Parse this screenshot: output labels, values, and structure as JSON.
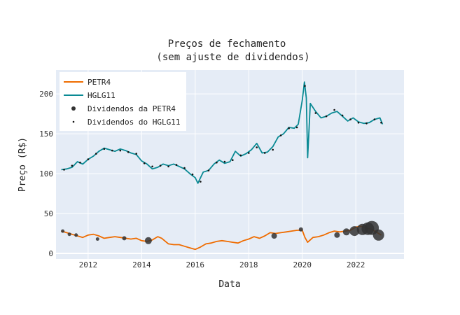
{
  "chart_data": {
    "type": "line",
    "title": [
      "Preços de fechamento",
      "(sem ajuste de dividendos)"
    ],
    "xlabel": "Data",
    "ylabel": "Preço (R$)",
    "xlim": [
      2010.8,
      2023.8
    ],
    "ylim": [
      -7,
      230
    ],
    "x_ticks": [
      2012,
      2014,
      2016,
      2018,
      2020,
      2022
    ],
    "y_ticks": [
      0,
      50,
      100,
      150,
      200
    ],
    "grid": true,
    "legend_position": "top-left",
    "series": [
      {
        "name": "PETR4",
        "color": "#ef6c00",
        "x": [
          2011.0,
          2011.2,
          2011.4,
          2011.6,
          2011.8,
          2012.0,
          2012.2,
          2012.4,
          2012.6,
          2012.8,
          2013.0,
          2013.2,
          2013.4,
          2013.6,
          2013.8,
          2014.0,
          2014.2,
          2014.4,
          2014.6,
          2014.75,
          2015.0,
          2015.2,
          2015.4,
          2015.6,
          2015.8,
          2016.0,
          2016.2,
          2016.4,
          2016.6,
          2016.8,
          2017.0,
          2017.2,
          2017.4,
          2017.6,
          2017.8,
          2018.0,
          2018.2,
          2018.4,
          2018.6,
          2018.8,
          2019.0,
          2019.2,
          2019.4,
          2019.6,
          2019.8,
          2020.0,
          2020.1,
          2020.2,
          2020.4,
          2020.6,
          2020.8,
          2021.0,
          2021.2,
          2021.4,
          2021.6,
          2021.8,
          2022.0,
          2022.2,
          2022.4,
          2022.6,
          2022.8,
          2022.95
        ],
        "y": [
          28,
          26,
          24,
          22,
          20,
          23,
          24,
          22,
          19,
          20,
          21,
          20,
          19,
          18,
          19,
          16,
          15,
          17,
          21,
          19,
          12,
          11,
          11,
          9,
          7,
          5,
          8,
          12,
          13,
          15,
          16,
          15,
          14,
          13,
          16,
          18,
          21,
          19,
          22,
          26,
          25,
          26,
          27,
          28,
          29,
          29,
          20,
          14,
          20,
          21,
          23,
          26,
          28,
          27,
          28,
          29,
          33,
          34,
          32,
          30,
          26,
          23
        ]
      },
      {
        "name": "HGLG11",
        "color": "#0a8a94",
        "x": [
          2011.0,
          2011.2,
          2011.4,
          2011.6,
          2011.8,
          2012.0,
          2012.2,
          2012.4,
          2012.6,
          2012.8,
          2013.0,
          2013.2,
          2013.4,
          2013.6,
          2013.8,
          2014.0,
          2014.2,
          2014.4,
          2014.6,
          2014.8,
          2015.0,
          2015.2,
          2015.4,
          2015.6,
          2015.8,
          2016.0,
          2016.1,
          2016.3,
          2016.5,
          2016.7,
          2016.9,
          2017.1,
          2017.3,
          2017.5,
          2017.7,
          2017.9,
          2018.1,
          2018.3,
          2018.5,
          2018.7,
          2018.9,
          2019.1,
          2019.3,
          2019.5,
          2019.7,
          2019.85,
          2020.0,
          2020.08,
          2020.15,
          2020.2,
          2020.3,
          2020.5,
          2020.7,
          2020.9,
          2021.1,
          2021.3,
          2021.5,
          2021.7,
          2021.9,
          2022.1,
          2022.3,
          2022.5,
          2022.7,
          2022.9,
          2023.0
        ],
        "y": [
          105,
          106,
          108,
          115,
          112,
          118,
          122,
          128,
          132,
          130,
          128,
          131,
          129,
          126,
          124,
          116,
          112,
          106,
          108,
          112,
          110,
          112,
          109,
          106,
          100,
          95,
          88,
          102,
          104,
          112,
          117,
          113,
          115,
          128,
          122,
          125,
          130,
          138,
          126,
          127,
          134,
          146,
          150,
          158,
          157,
          162,
          192,
          215,
          195,
          120,
          188,
          178,
          170,
          172,
          176,
          178,
          172,
          166,
          170,
          165,
          163,
          164,
          168,
          170,
          162
        ]
      }
    ],
    "dividend_series": [
      {
        "name": "Dividendos da PETR4",
        "color": "#333333",
        "x": [
          2011.05,
          2011.3,
          2011.55,
          2012.35,
          2013.35,
          2014.25,
          2018.95,
          2019.95,
          2021.3,
          2021.65,
          2021.95,
          2022.25,
          2022.45,
          2022.6,
          2022.85
        ],
        "y": [
          28,
          24,
          23,
          18,
          19,
          16,
          22,
          30,
          23,
          27,
          28,
          30,
          31,
          32,
          23
        ],
        "sizes": [
          2.5,
          2.5,
          2.5,
          2.5,
          3,
          5,
          4,
          3,
          4,
          5,
          7,
          8,
          9,
          10,
          8
        ]
      },
      {
        "name": "Dividendos do HGLG11",
        "color": "#111111",
        "x": [
          2011.1,
          2011.4,
          2011.7,
          2012.0,
          2012.3,
          2012.6,
          2012.9,
          2013.2,
          2013.5,
          2013.8,
          2014.1,
          2014.4,
          2014.7,
          2015.0,
          2015.3,
          2015.6,
          2015.9,
          2016.2,
          2016.5,
          2016.8,
          2017.1,
          2017.4,
          2017.7,
          2018.0,
          2018.3,
          2018.6,
          2018.9,
          2019.2,
          2019.5,
          2019.8,
          2020.1,
          2020.5,
          2020.9,
          2021.2,
          2021.5,
          2021.8,
          2022.1,
          2022.4,
          2022.7,
          2022.95
        ],
        "y": [
          105,
          110,
          114,
          118,
          125,
          131,
          129,
          129,
          127,
          125,
          113,
          109,
          110,
          109,
          111,
          107,
          99,
          90,
          104,
          114,
          115,
          117,
          123,
          126,
          133,
          126,
          130,
          148,
          157,
          158,
          210,
          176,
          172,
          180,
          173,
          168,
          164,
          163,
          168,
          164
        ]
      }
    ]
  }
}
